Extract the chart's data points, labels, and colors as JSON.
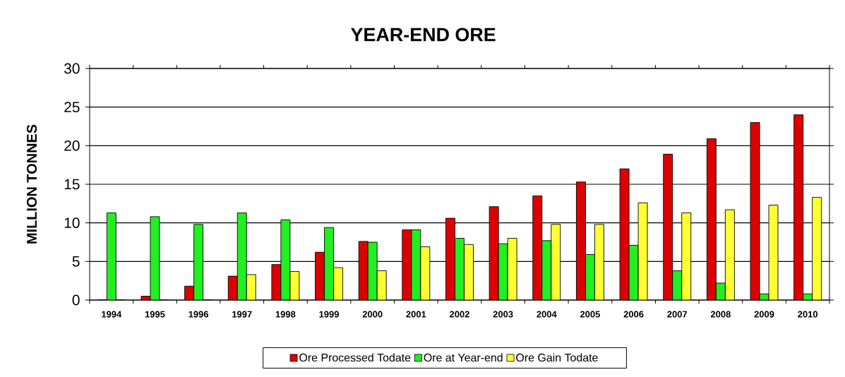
{
  "chart_data": {
    "type": "bar",
    "title": "YEAR-END ORE",
    "ylabel": "MILLION TONNES",
    "categories": [
      "1994",
      "1995",
      "1996",
      "1997",
      "1998",
      "1999",
      "2000",
      "2001",
      "2002",
      "2003",
      "2004",
      "2005",
      "2006",
      "2007",
      "2008",
      "2009",
      "2010"
    ],
    "series": [
      {
        "name": "Ore Processed Todate",
        "color": "#dd0000",
        "values": [
          0,
          0.5,
          1.8,
          3.1,
          4.6,
          6.2,
          7.6,
          9.1,
          10.6,
          12.1,
          13.5,
          15.3,
          17.0,
          18.9,
          20.9,
          23.0,
          24.0
        ]
      },
      {
        "name": "Ore at Year-end",
        "color": "#22ee22",
        "values": [
          11.3,
          10.8,
          9.8,
          11.3,
          10.4,
          9.4,
          7.5,
          9.1,
          8.0,
          7.3,
          7.7,
          5.9,
          7.1,
          3.8,
          2.2,
          0.8,
          0.8
        ]
      },
      {
        "name": "Ore Gain Todate",
        "color": "#ffff33",
        "values": [
          0,
          0,
          0,
          3.3,
          3.7,
          4.2,
          3.8,
          6.9,
          7.2,
          8.0,
          9.8,
          9.8,
          12.6,
          11.3,
          11.7,
          12.3,
          13.3
        ]
      }
    ],
    "ylim": [
      0,
      30
    ],
    "yticks": [
      0,
      5,
      10,
      15,
      20,
      25,
      30
    ],
    "grid": "y",
    "legend": "bottom"
  }
}
